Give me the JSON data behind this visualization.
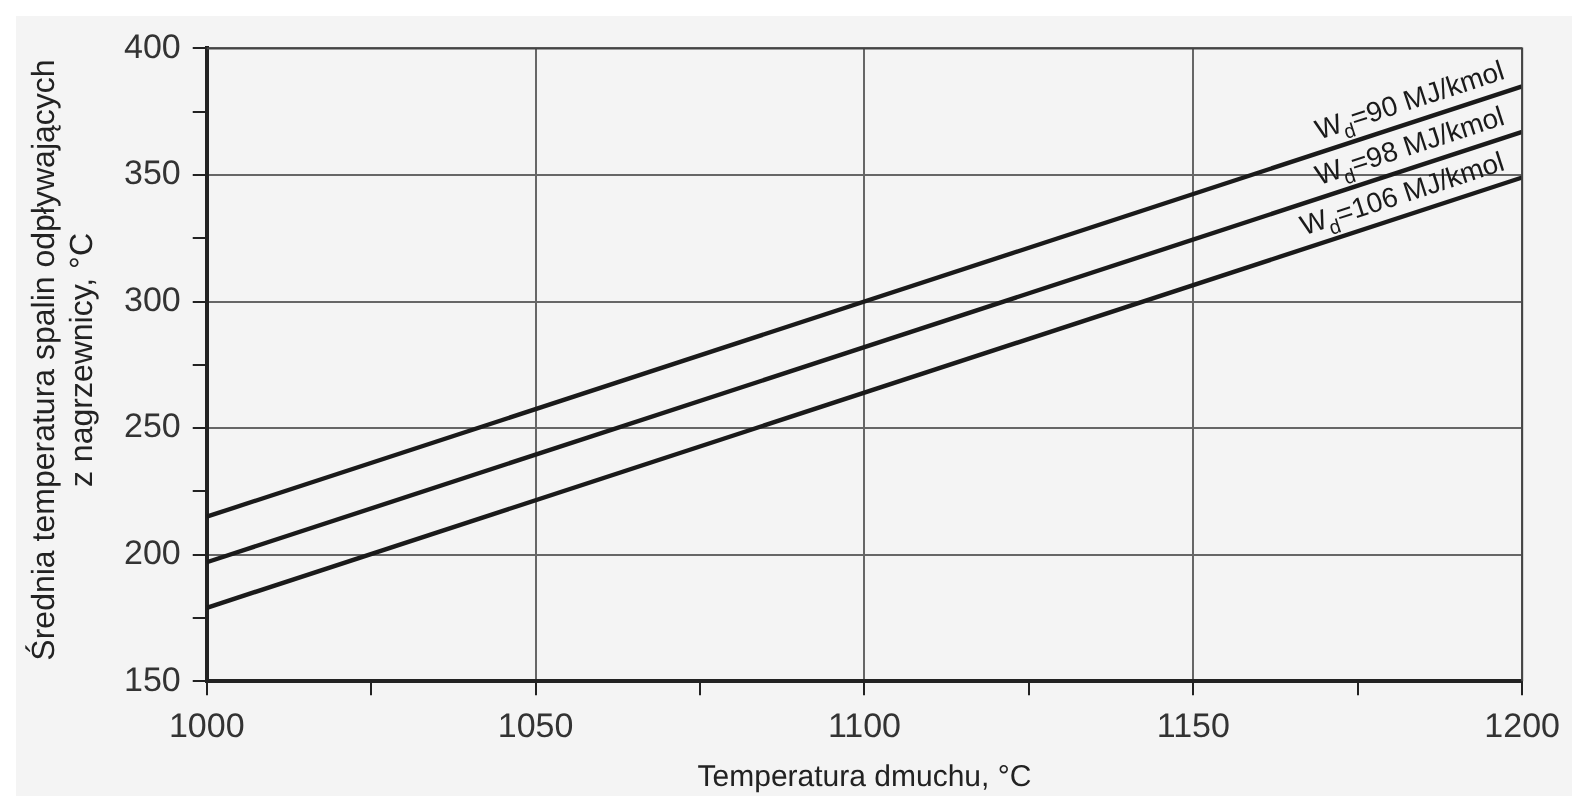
{
  "chart_data": {
    "type": "line",
    "xlabel": "Temperatura dmuchu, °C",
    "ylabel": "Średnia temperatura spalin odpływających z nagrzewnicy, °C",
    "x": [
      1000,
      1200
    ],
    "series": [
      {
        "name": "W$_{d}$=90 MJ/kmol",
        "color": "#1a1a1a",
        "values": [
          215,
          385
        ]
      },
      {
        "name": "W$_{d}$=98 MJ/kmol",
        "color": "#1a1a1a",
        "values": [
          197,
          367
        ]
      },
      {
        "name": "W$_{d}$=106 MJ/kmol",
        "color": "#1a1a1a",
        "values": [
          179,
          349
        ]
      }
    ],
    "xlim": [
      1000,
      1200
    ],
    "xticks": [
      1000,
      {
        "value": 1025,
        "label": null
      },
      1050,
      {
        "value": 1075,
        "label": null
      },
      1100,
      {
        "value": 1125,
        "label": null
      },
      1150,
      {
        "value": 1175,
        "label": null
      },
      1200
    ],
    "ylim": [
      150,
      400
    ],
    "yticks": [
      150,
      {
        "value": 175,
        "label": null
      },
      200,
      {
        "value": 225,
        "label": null
      },
      250,
      {
        "value": 275,
        "label": null
      },
      300,
      {
        "value": 325,
        "label": null
      },
      350,
      {
        "value": 375,
        "label": null
      },
      400
    ],
    "grid": true,
    "legend": false,
    "marker": "none",
    "line_style": "solid"
  }
}
